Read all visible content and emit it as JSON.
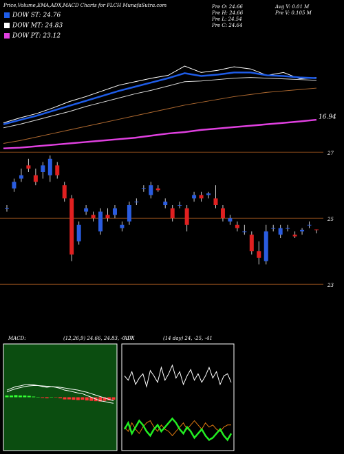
{
  "chart_data": {
    "type": "candlestick",
    "title": "Price,Volume,EMA,ADX,MACD Charts for FLCH MunafaSutra.com",
    "legend": [
      {
        "name": "DOW ST: 24.76",
        "color": "#1e5ce8"
      },
      {
        "name": "DOW MT: 24.83",
        "color": "#ffffff"
      },
      {
        "name": "DOW PT: 23.12",
        "color": "#e040e0"
      }
    ],
    "info": [
      "Pre O: 24.66",
      "Pre H: 24.66",
      "Pre L: 24.54",
      "Pre C: 24.64",
      "Avg V: 0.01 M",
      "Pre V: 0.105 M"
    ],
    "upper": {
      "ylim": [
        12,
        28
      ],
      "end_label": "16.94",
      "series": [
        {
          "color": "#ffffff",
          "values": [
            16.5,
            17.2,
            17.8,
            18.6,
            19.5,
            20.2,
            21,
            21.8,
            22.3,
            22.8,
            23.2,
            24.5,
            23.6,
            23.9,
            24.4,
            24.1,
            23.2,
            23.6,
            22.7,
            22.9
          ]
        },
        {
          "color": "#1e5ce8",
          "values": [
            16.3,
            16.9,
            17.5,
            18.2,
            18.9,
            19.6,
            20.3,
            21,
            21.6,
            22.2,
            22.8,
            23.5,
            23.1,
            23.3,
            23.6,
            23.6,
            23.2,
            23.1,
            22.9,
            22.8
          ]
        },
        {
          "color": "#dddddd",
          "values": [
            15.8,
            16.3,
            16.9,
            17.5,
            18.1,
            18.8,
            19.4,
            20,
            20.6,
            21.1,
            21.7,
            22.3,
            22.4,
            22.6,
            22.8,
            22.9,
            22.8,
            22.7,
            22.6,
            22.5
          ]
        },
        {
          "color": "#b06a30",
          "values": [
            13.6,
            14,
            14.5,
            15,
            15.5,
            16,
            16.5,
            17,
            17.5,
            18,
            18.5,
            19,
            19.4,
            19.8,
            20.2,
            20.5,
            20.8,
            21,
            21.2,
            21.4
          ]
        },
        {
          "color": "#e040e0",
          "values": [
            12.9,
            13,
            13.2,
            13.4,
            13.6,
            13.8,
            14,
            14.2,
            14.4,
            14.7,
            15,
            15.2,
            15.5,
            15.7,
            15.9,
            16.1,
            16.3,
            16.5,
            16.7,
            16.94
          ]
        }
      ]
    },
    "ylim": [
      22.9,
      26.9
    ],
    "yticks": [
      23,
      25,
      27
    ],
    "up_color": "#2a5ce0",
    "down_color": "#e02020",
    "open": [
      25.3,
      25.9,
      26.2,
      26.6,
      26.3,
      26.4,
      26.3,
      26.6,
      26.0,
      25.6,
      24.3,
      25.2,
      25.1,
      24.6,
      25.1,
      25.1,
      24.7,
      24.9,
      25.5,
      25.9,
      25.7,
      25.9,
      25.4,
      25.3,
      25.4,
      25.3,
      25.6,
      25.7,
      25.7,
      25.6,
      25.3,
      24.9,
      24.8,
      24.6,
      24.5,
      24.0,
      23.7,
      24.7,
      24.5,
      24.7,
      24.5,
      24.6,
      24.8,
      24.66
    ],
    "high": [
      25.4,
      26.2,
      26.5,
      26.8,
      26.5,
      26.7,
      26.9,
      26.7,
      26.1,
      25.7,
      24.9,
      25.4,
      25.2,
      25.3,
      25.3,
      25.4,
      24.9,
      25.5,
      25.6,
      26.0,
      26.1,
      26.0,
      25.6,
      25.4,
      25.5,
      25.4,
      25.8,
      25.8,
      25.8,
      26.0,
      25.4,
      25.1,
      24.9,
      24.8,
      24.6,
      24.3,
      24.8,
      24.8,
      24.8,
      24.8,
      24.6,
      24.7,
      24.9,
      24.66
    ],
    "low": [
      25.2,
      25.8,
      26.1,
      26.4,
      26.0,
      26.2,
      26.1,
      26.2,
      25.5,
      23.7,
      24.2,
      25.1,
      24.9,
      24.5,
      24.9,
      25.0,
      24.6,
      24.8,
      25.4,
      25.8,
      25.6,
      25.8,
      25.3,
      24.9,
      25.3,
      24.6,
      25.5,
      25.5,
      25.6,
      25.3,
      24.9,
      24.8,
      24.6,
      24.5,
      23.9,
      23.6,
      23.6,
      24.6,
      24.4,
      24.6,
      24.4,
      24.5,
      24.7,
      24.54
    ],
    "close": [
      25.3,
      26.1,
      26.3,
      26.5,
      26.1,
      26.6,
      26.8,
      26.3,
      25.6,
      23.9,
      24.8,
      25.3,
      25.0,
      25.2,
      25.0,
      25.3,
      24.8,
      25.4,
      25.5,
      25.9,
      26.0,
      25.85,
      25.5,
      25.0,
      25.4,
      24.8,
      25.7,
      25.6,
      25.75,
      25.4,
      25.0,
      25.0,
      24.7,
      24.6,
      24.0,
      23.8,
      24.6,
      24.7,
      24.7,
      24.7,
      24.45,
      24.65,
      24.8,
      24.64
    ],
    "macd": {
      "label": "MACD:",
      "params": "(12,26,9) 24.66, 24.83, -0.17",
      "ylim": [
        -1.5,
        1.5
      ],
      "line": [
        0.2,
        0.25,
        0.3,
        0.32,
        0.35,
        0.36,
        0.35,
        0.33,
        0.3,
        0.28,
        0.3,
        0.28,
        0.25,
        0.2,
        0.18,
        0.15,
        0.12,
        0.1,
        0.05,
        0,
        -0.05,
        -0.1,
        -0.12,
        -0.15,
        -0.17
      ],
      "signal": [
        0.15,
        0.2,
        0.24,
        0.27,
        0.3,
        0.32,
        0.33,
        0.33,
        0.32,
        0.31,
        0.3,
        0.29,
        0.28,
        0.26,
        0.24,
        0.22,
        0.2,
        0.17,
        0.14,
        0.1,
        0.06,
        0.02,
        -0.02,
        -0.06,
        -0.1
      ],
      "hist": [
        0.05,
        0.05,
        0.06,
        0.05,
        0.05,
        0.04,
        0.02,
        0,
        -0.02,
        -0.03,
        0,
        -0.01,
        -0.03,
        -0.06,
        -0.06,
        -0.07,
        -0.08,
        -0.07,
        -0.09,
        -0.1,
        -0.11,
        -0.12,
        -0.1,
        -0.09,
        -0.07
      ]
    },
    "adx": {
      "label": "ADX",
      "params": "(14 day) 24, -25, -41",
      "ylim": [
        0,
        100
      ],
      "plus": [
        70,
        66,
        74,
        62,
        68,
        72,
        60,
        75,
        70,
        64,
        78,
        66,
        72,
        80,
        68,
        74,
        62,
        70,
        76,
        66,
        72,
        64,
        70,
        78,
        68,
        74,
        62,
        70,
        72,
        64
      ],
      "green": [
        20,
        26,
        16,
        22,
        28,
        24,
        18,
        14,
        20,
        24,
        18,
        22,
        26,
        30,
        26,
        20,
        16,
        22,
        18,
        12,
        16,
        20,
        14,
        10,
        12,
        16,
        20,
        14,
        10,
        16
      ],
      "orange": [
        22,
        18,
        26,
        20,
        16,
        22,
        26,
        28,
        22,
        18,
        24,
        20,
        18,
        14,
        18,
        22,
        26,
        20,
        24,
        28,
        24,
        20,
        26,
        22,
        24,
        20,
        18,
        22,
        24,
        24
      ]
    }
  }
}
